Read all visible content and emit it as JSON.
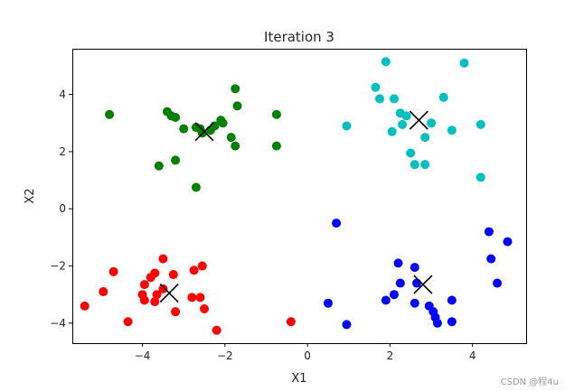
{
  "chart_data": {
    "type": "scatter",
    "title": "Iteration 3",
    "xlabel": "X1",
    "ylabel": "X2",
    "xlim": [
      -5.7,
      5.3
    ],
    "ylim": [
      -4.7,
      5.6
    ],
    "xticks": [
      -4,
      -2,
      0,
      2,
      4
    ],
    "yticks": [
      -4,
      -2,
      0,
      2,
      4
    ],
    "xtick_labels": [
      "−4",
      "−2",
      "0",
      "2",
      "4"
    ],
    "ytick_labels": [
      "−4",
      "−2",
      "0",
      "2",
      "4"
    ],
    "grid": false,
    "legend": "none",
    "series": [
      {
        "color": "#008000",
        "points": [
          [
            -4.8,
            3.3
          ],
          [
            -3.4,
            3.4
          ],
          [
            -3.3,
            3.25
          ],
          [
            -3.2,
            3.2
          ],
          [
            -3.0,
            2.8
          ],
          [
            -2.7,
            2.85
          ],
          [
            -2.6,
            2.8
          ],
          [
            -2.55,
            2.65
          ],
          [
            -2.35,
            2.75
          ],
          [
            -2.25,
            2.9
          ],
          [
            -2.1,
            3.1
          ],
          [
            -2.05,
            3.0
          ],
          [
            -1.75,
            4.2
          ],
          [
            -1.7,
            3.6
          ],
          [
            -1.85,
            2.5
          ],
          [
            -1.75,
            2.2
          ],
          [
            -0.75,
            3.3
          ],
          [
            -0.75,
            2.2
          ],
          [
            -3.2,
            1.7
          ],
          [
            -3.6,
            1.5
          ],
          [
            -2.7,
            0.75
          ]
        ],
        "centroid": [
          -2.5,
          2.7
        ]
      },
      {
        "color": "#00bfbf",
        "points": [
          [
            1.9,
            5.15
          ],
          [
            3.8,
            5.1
          ],
          [
            1.65,
            4.25
          ],
          [
            1.75,
            3.85
          ],
          [
            2.1,
            3.85
          ],
          [
            3.3,
            3.9
          ],
          [
            2.25,
            3.35
          ],
          [
            2.4,
            3.25
          ],
          [
            2.3,
            2.95
          ],
          [
            2.05,
            2.7
          ],
          [
            0.95,
            2.9
          ],
          [
            3.0,
            3.0
          ],
          [
            2.85,
            2.5
          ],
          [
            3.5,
            2.75
          ],
          [
            4.2,
            2.95
          ],
          [
            2.5,
            1.95
          ],
          [
            2.6,
            1.55
          ],
          [
            2.85,
            1.55
          ],
          [
            4.2,
            1.1
          ]
        ],
        "centroid": [
          2.7,
          3.1
        ]
      },
      {
        "color": "#ff0000",
        "points": [
          [
            -3.5,
            -1.75
          ],
          [
            -2.55,
            -2.0
          ],
          [
            -2.75,
            -2.15
          ],
          [
            -4.7,
            -2.2
          ],
          [
            -3.7,
            -2.25
          ],
          [
            -3.8,
            -2.4
          ],
          [
            -3.25,
            -2.3
          ],
          [
            -3.95,
            -2.65
          ],
          [
            -4.95,
            -2.9
          ],
          [
            -4.0,
            -3.0
          ],
          [
            -3.65,
            -3.0
          ],
          [
            -3.5,
            -2.8
          ],
          [
            -3.95,
            -3.2
          ],
          [
            -3.7,
            -3.25
          ],
          [
            -2.8,
            -3.1
          ],
          [
            -2.6,
            -3.1
          ],
          [
            -5.4,
            -3.4
          ],
          [
            -2.5,
            -3.5
          ],
          [
            -3.2,
            -3.6
          ],
          [
            -4.35,
            -3.95
          ],
          [
            -2.2,
            -4.25
          ],
          [
            -0.4,
            -3.95
          ]
        ],
        "centroid": [
          -3.35,
          -2.95
        ]
      },
      {
        "color": "#0000ff",
        "points": [
          [
            0.7,
            -0.5
          ],
          [
            4.4,
            -0.8
          ],
          [
            4.85,
            -1.15
          ],
          [
            4.45,
            -1.75
          ],
          [
            2.2,
            -1.9
          ],
          [
            2.6,
            -2.05
          ],
          [
            4.6,
            -2.6
          ],
          [
            2.25,
            -2.6
          ],
          [
            2.65,
            -2.6
          ],
          [
            2.1,
            -3.0
          ],
          [
            1.9,
            -3.2
          ],
          [
            0.5,
            -3.3
          ],
          [
            2.6,
            -3.3
          ],
          [
            2.95,
            -3.4
          ],
          [
            3.5,
            -3.2
          ],
          [
            3.05,
            -3.6
          ],
          [
            3.1,
            -3.8
          ],
          [
            3.15,
            -4.0
          ],
          [
            3.5,
            -3.95
          ],
          [
            0.95,
            -4.05
          ]
        ],
        "centroid": [
          2.8,
          -2.65
        ]
      }
    ]
  },
  "watermark": "CSDN @程4u"
}
